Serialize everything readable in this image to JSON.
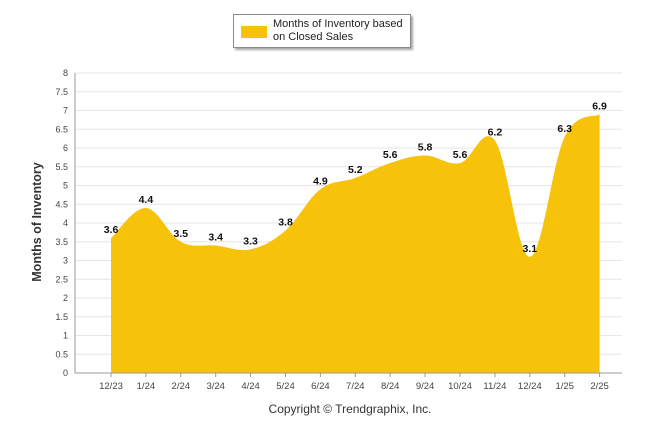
{
  "chart_data": {
    "type": "area",
    "title": "",
    "xlabel": "",
    "ylabel": "Months of Inventory",
    "categories": [
      "12/23",
      "1/24",
      "2/24",
      "3/24",
      "4/24",
      "5/24",
      "6/24",
      "7/24",
      "8/24",
      "9/24",
      "10/24",
      "11/24",
      "12/24",
      "1/25",
      "2/25"
    ],
    "series": [
      {
        "name": "Months of Inventory based on Closed Sales",
        "values": [
          3.6,
          4.4,
          3.5,
          3.4,
          3.3,
          3.8,
          4.9,
          5.2,
          5.6,
          5.8,
          5.6,
          6.2,
          3.1,
          6.3,
          6.9
        ],
        "color": "#f7c20a"
      }
    ],
    "data_labels": [
      "3.6",
      "4.4",
      "3.5",
      "3.4",
      "3.3",
      "3.8",
      "4.9",
      "5.2",
      "5.6",
      "5.8",
      "5.6",
      "6.2",
      "3.1",
      "6.3",
      "6.9"
    ],
    "ylim": [
      0,
      8
    ],
    "yticks": [
      "0",
      "0.5",
      "1",
      "1.5",
      "2",
      "2.5",
      "3",
      "3.5",
      "4",
      "4.5",
      "5",
      "5.5",
      "6",
      "6.5",
      "7",
      "7.5",
      "8"
    ],
    "grid": true,
    "legend_position": "top-center"
  },
  "legend": {
    "line1": "Months of Inventory based",
    "line2": "on Closed Sales"
  },
  "footer": {
    "copyright": "Copyright © Trendgraphix, Inc."
  },
  "colors": {
    "fill": "#f7c20a",
    "grid": "#e6e6e6",
    "axis": "#999999"
  }
}
